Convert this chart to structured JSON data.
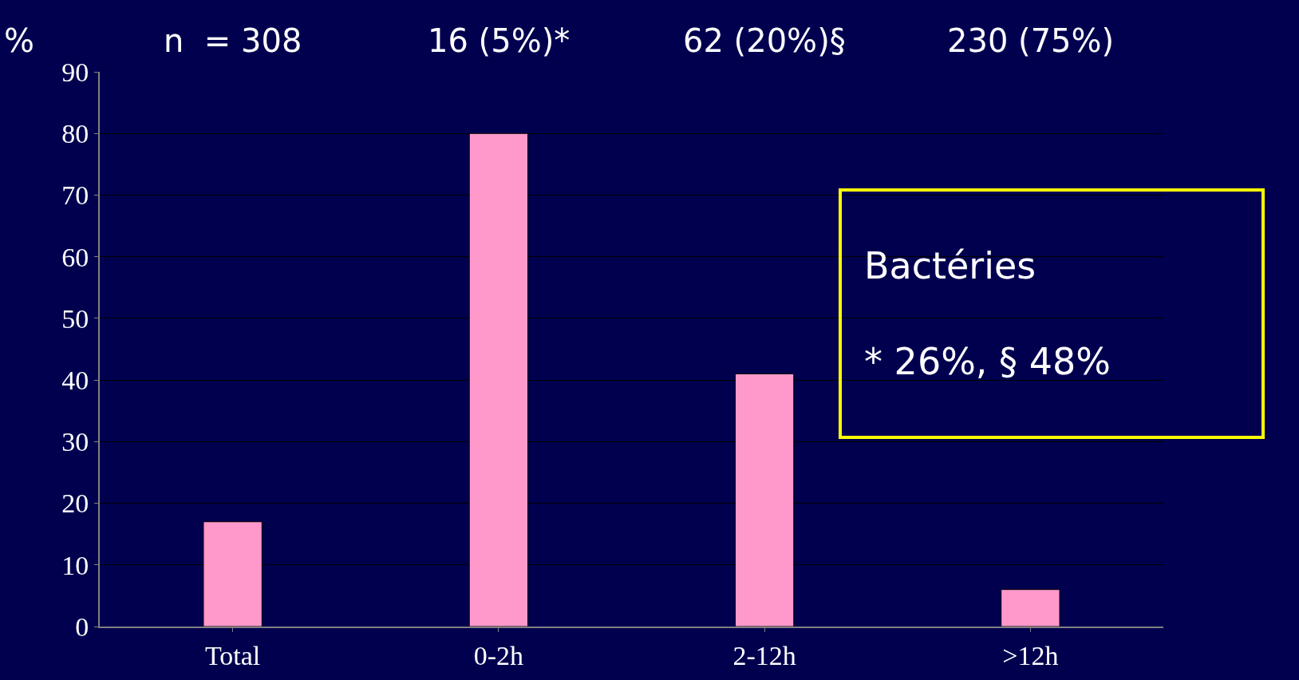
{
  "chart_data": {
    "type": "bar",
    "ylabel": "%",
    "categories": [
      "Total",
      "0-2h",
      "2-12h",
      ">12h"
    ],
    "values": [
      17,
      80,
      41,
      6
    ],
    "color": "#ff99cc",
    "ylim": [
      0,
      90
    ],
    "yticks": [
      0,
      10,
      20,
      30,
      40,
      50,
      60,
      70,
      80,
      90
    ],
    "grid": "y",
    "annotations": [
      "n  = 308",
      "16 (5%)*",
      "62 (20%)§",
      "230 (75%)",
      "Bactéries\n\n* 26%, § 48%"
    ]
  }
}
